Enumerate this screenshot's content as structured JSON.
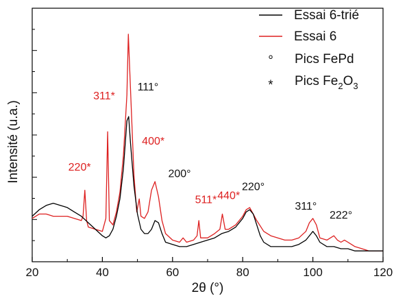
{
  "chart_data": {
    "type": "line",
    "title": "",
    "xlabel": "2θ (°)",
    "ylabel": "Intensité (u.a.)",
    "xlim": [
      20,
      120
    ],
    "xticks": [
      20,
      40,
      60,
      80,
      100,
      120
    ],
    "y_tick_labels_shown": false,
    "grid": false,
    "legend_position": "top-right",
    "legend": [
      {
        "label": "Essai 6-trié",
        "kind": "line",
        "color": "#000000"
      },
      {
        "label": "Essai 6",
        "kind": "line",
        "color": "#dd1f1f"
      },
      {
        "label": "Pics FePd",
        "kind": "marker",
        "marker": "°",
        "color": "#000000"
      },
      {
        "label": "Pics Fe2O3",
        "label_main": "Pics Fe",
        "label_sub": "2",
        "label_tail": "O",
        "label_sub2": "3",
        "kind": "marker",
        "marker": "*",
        "color": "#dd1f1f"
      }
    ],
    "series": [
      {
        "name": "Essai 6-trié",
        "color": "#000000",
        "x": [
          20,
          22,
          24,
          26,
          28,
          30,
          32,
          34,
          36,
          38,
          40,
          41,
          42,
          43,
          44,
          45,
          46,
          47,
          47.5,
          48,
          49,
          50,
          51,
          52,
          53,
          54,
          55,
          56,
          57,
          58,
          60,
          62,
          64,
          66,
          68,
          70,
          72,
          74,
          76,
          78,
          80,
          81,
          82,
          83,
          84,
          85,
          86,
          88,
          90,
          92,
          94,
          96,
          98,
          99,
          100,
          101,
          102,
          104,
          106,
          108,
          110,
          112,
          114,
          116,
          118,
          120
        ],
        "y": [
          0.16,
          0.19,
          0.21,
          0.22,
          0.21,
          0.2,
          0.18,
          0.16,
          0.13,
          0.1,
          0.07,
          0.06,
          0.07,
          0.1,
          0.16,
          0.24,
          0.38,
          0.6,
          0.62,
          0.5,
          0.3,
          0.17,
          0.1,
          0.08,
          0.08,
          0.1,
          0.14,
          0.13,
          0.08,
          0.04,
          0.03,
          0.02,
          0.02,
          0.03,
          0.04,
          0.05,
          0.06,
          0.08,
          0.09,
          0.11,
          0.15,
          0.18,
          0.19,
          0.17,
          0.12,
          0.07,
          0.04,
          0.02,
          0.02,
          0.02,
          0.02,
          0.03,
          0.05,
          0.07,
          0.09,
          0.07,
          0.04,
          0.02,
          0.02,
          0.01,
          0.01,
          0.0,
          0.0,
          0.0,
          0.0,
          0.0
        ]
      },
      {
        "name": "Essai 6",
        "color": "#dd1f1f",
        "x": [
          20,
          22,
          24,
          26,
          28,
          30,
          32,
          34,
          34.5,
          35,
          35.5,
          36,
          38,
          40,
          41,
          41.5,
          42,
          43,
          44,
          45,
          46,
          47,
          47.4,
          48,
          49,
          49.8,
          50.5,
          51,
          52,
          53,
          54,
          55,
          56,
          57,
          58,
          60,
          62,
          63,
          64,
          66,
          67,
          67.5,
          68,
          70,
          72,
          73.5,
          74.2,
          75,
          76,
          78,
          80,
          81,
          82,
          83,
          84,
          86,
          88,
          90,
          92,
          94,
          96,
          98,
          99,
          100,
          101,
          102,
          104,
          105,
          106,
          107,
          108,
          109,
          110,
          111,
          112,
          114,
          116,
          118,
          120
        ],
        "y": [
          0.15,
          0.17,
          0.17,
          0.16,
          0.16,
          0.16,
          0.15,
          0.14,
          0.16,
          0.28,
          0.14,
          0.11,
          0.1,
          0.09,
          0.15,
          0.55,
          0.14,
          0.12,
          0.18,
          0.27,
          0.44,
          0.72,
          1.0,
          0.75,
          0.35,
          0.18,
          0.24,
          0.16,
          0.15,
          0.18,
          0.28,
          0.32,
          0.25,
          0.14,
          0.08,
          0.05,
          0.04,
          0.06,
          0.04,
          0.05,
          0.07,
          0.14,
          0.06,
          0.06,
          0.08,
          0.1,
          0.17,
          0.1,
          0.1,
          0.12,
          0.16,
          0.19,
          0.2,
          0.17,
          0.14,
          0.09,
          0.07,
          0.06,
          0.05,
          0.05,
          0.06,
          0.09,
          0.13,
          0.15,
          0.12,
          0.06,
          0.05,
          0.06,
          0.07,
          0.05,
          0.04,
          0.05,
          0.04,
          0.03,
          0.02,
          0.01,
          0.0,
          0.0,
          0.0
        ]
      }
    ],
    "annotations": [
      {
        "text": "220*",
        "color": "#dd1f1f",
        "x": 33.5,
        "y": 0.37
      },
      {
        "text": "311*",
        "color": "#dd1f1f",
        "x": 40.5,
        "y": 0.7
      },
      {
        "text": "111°",
        "color": "#111111",
        "x": 53,
        "y": 0.74
      },
      {
        "text": "400*",
        "color": "#dd1f1f",
        "x": 54.5,
        "y": 0.49
      },
      {
        "text": "200°",
        "color": "#111111",
        "x": 62,
        "y": 0.34
      },
      {
        "text": "511*",
        "color": "#dd1f1f",
        "x": 69.5,
        "y": 0.22
      },
      {
        "text": "440*",
        "color": "#dd1f1f",
        "x": 76,
        "y": 0.24
      },
      {
        "text": "220°",
        "color": "#111111",
        "x": 83,
        "y": 0.28
      },
      {
        "text": "311°",
        "color": "#111111",
        "x": 98,
        "y": 0.19
      },
      {
        "text": "222°",
        "color": "#111111",
        "x": 108,
        "y": 0.15
      }
    ]
  }
}
